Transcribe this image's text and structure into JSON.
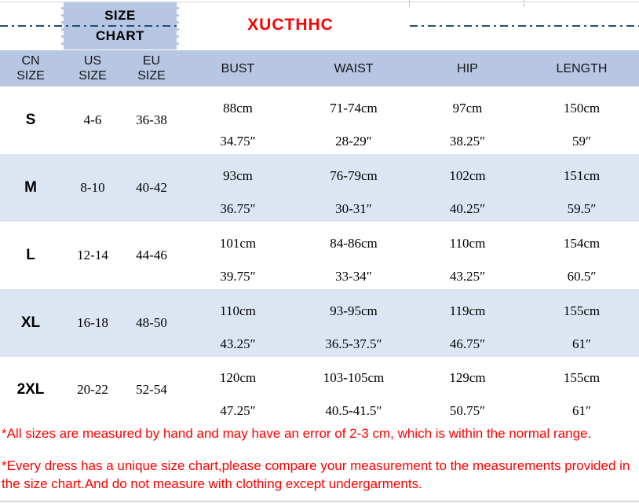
{
  "brand": "XUCTHHC",
  "chart_title": {
    "line1": "SIZE",
    "line2": "CHART"
  },
  "table": {
    "headers": {
      "cn": [
        "CN",
        "SIZE"
      ],
      "us": [
        "US",
        "SIZE"
      ],
      "eu": [
        "EU",
        "SIZE"
      ],
      "bust": "BUST",
      "waist": "WAIST",
      "hip": "HIP",
      "length": "LENGTH"
    },
    "rows": [
      {
        "cn": "S",
        "us": "4-6",
        "eu": "36-38",
        "bust_cm": "88cm",
        "bust_in": "34.75″",
        "waist_cm": "71-74cm",
        "waist_in": "28-29″",
        "hip_cm": "97cm",
        "hip_in": "38.25″",
        "length_cm": "150cm",
        "length_in": "59″"
      },
      {
        "cn": "M",
        "us": "8-10",
        "eu": "40-42",
        "bust_cm": "93cm",
        "bust_in": "36.75″",
        "waist_cm": "76-79cm",
        "waist_in": "30-31″",
        "hip_cm": "102cm",
        "hip_in": "40.25″",
        "length_cm": "151cm",
        "length_in": "59.5″"
      },
      {
        "cn": "L",
        "us": "12-14",
        "eu": "44-46",
        "bust_cm": "101cm",
        "bust_in": "39.75″",
        "waist_cm": "84-86cm",
        "waist_in": "33-34″",
        "hip_cm": "110cm",
        "hip_in": "43.25″",
        "length_cm": "154cm",
        "length_in": "60.5″"
      },
      {
        "cn": "XL",
        "us": "16-18",
        "eu": "48-50",
        "bust_cm": "110cm",
        "bust_in": "43.25″",
        "waist_cm": "93-95cm",
        "waist_in": "36.5-37.5″",
        "hip_cm": "119cm",
        "hip_in": "46.75″",
        "length_cm": "155cm",
        "length_in": "61″"
      },
      {
        "cn": "2XL",
        "us": "20-22",
        "eu": "52-54",
        "bust_cm": "120cm",
        "bust_in": "47.25″",
        "waist_cm": "103-105cm",
        "waist_in": "40.5-41.5″",
        "hip_cm": "129cm",
        "hip_in": "50.75″",
        "length_cm": "155cm",
        "length_in": "61″"
      }
    ]
  },
  "notes": [
    "*All sizes are measured by hand and may have an error of 2-3 cm, which is within the normal range.",
    "*Every dress has a unique size chart,please compare your measurement to the measurements provided in the size chart.And do not measure with clothing except undergarments."
  ],
  "colors": {
    "header_blue": "#b6c6e3",
    "stripe_blue": "#dce6f2",
    "accent_navy": "#1f4e79",
    "brand_red": "#fe0000",
    "note_red": "#fe0000",
    "hairline_gray": "#d9d9d9"
  },
  "chart_data": {
    "type": "table",
    "title": "SIZE CHART",
    "columns": [
      "CN SIZE",
      "US SIZE",
      "EU SIZE",
      "BUST",
      "WAIST",
      "HIP",
      "LENGTH"
    ],
    "rows": [
      [
        "S",
        "4-6",
        "36-38",
        "88cm / 34.75″",
        "71-74cm / 28-29″",
        "97cm / 38.25″",
        "150cm / 59″"
      ],
      [
        "M",
        "8-10",
        "40-42",
        "93cm / 36.75″",
        "76-79cm / 30-31″",
        "102cm / 40.25″",
        "151cm / 59.5″"
      ],
      [
        "L",
        "12-14",
        "44-46",
        "101cm / 39.75″",
        "84-86cm / 33-34″",
        "110cm / 43.25″",
        "154cm / 60.5″"
      ],
      [
        "XL",
        "16-18",
        "48-50",
        "110cm / 43.25″",
        "93-95cm / 36.5-37.5″",
        "119cm / 46.75″",
        "155cm / 61″"
      ],
      [
        "2XL",
        "20-22",
        "52-54",
        "120cm / 47.25″",
        "103-105cm / 40.5-41.5″",
        "129cm / 50.75″",
        "155cm / 61″"
      ]
    ]
  }
}
